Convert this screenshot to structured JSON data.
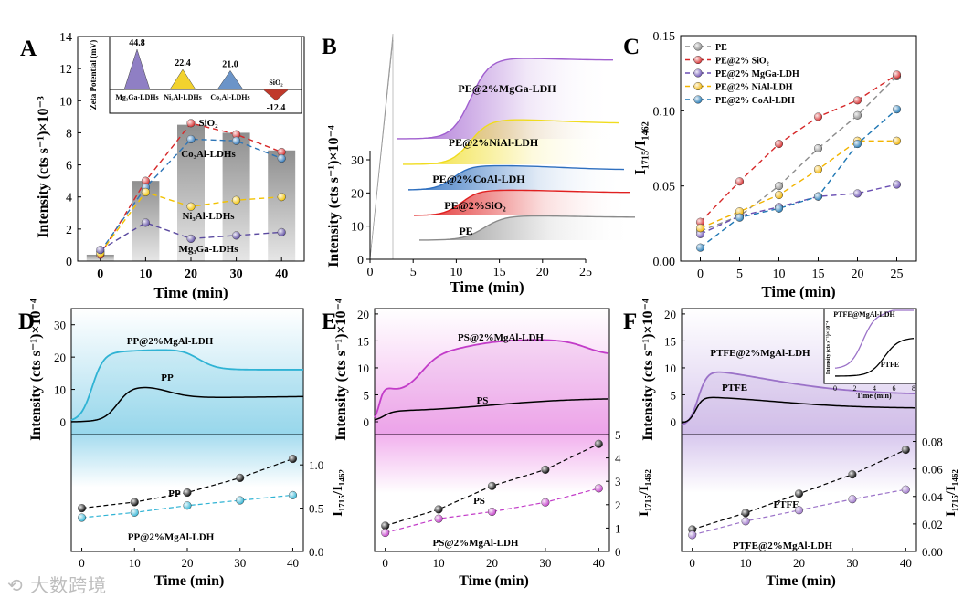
{
  "panel_letters": {
    "A": "A",
    "B": "B",
    "C": "C",
    "D": "D",
    "E": "E",
    "F": "F"
  },
  "watermark": "大数跨境",
  "chart_data": [
    {
      "id": "A",
      "type": "line",
      "xlabel": "Time (min)",
      "ylabel": "Intensity (cts s⁻¹)×10⁻³",
      "xlim": [
        -5,
        45
      ],
      "ylim": [
        0,
        14
      ],
      "xticks": [
        0,
        10,
        20,
        30,
        40
      ],
      "yticks": [
        0,
        2,
        4,
        6,
        8,
        10,
        12,
        14
      ],
      "x": [
        0,
        10,
        20,
        30,
        40
      ],
      "bars": [
        0.4,
        5.0,
        8.5,
        8.0,
        6.9
      ],
      "series": [
        {
          "name": "SiO₂",
          "color": "#d62728",
          "values": [
            0.4,
            5.0,
            8.6,
            7.9,
            6.8
          ]
        },
        {
          "name": "Co₃Al-LDHs",
          "color": "#2e75b6",
          "values": [
            0.6,
            4.6,
            7.6,
            7.5,
            6.4
          ]
        },
        {
          "name": "Ni₃Al-LDHs",
          "color": "#f2c200",
          "values": [
            0.5,
            4.3,
            3.4,
            3.8,
            4.0
          ]
        },
        {
          "name": "Mg₃Ga-LDHs",
          "color": "#5b4aa0",
          "values": [
            0.7,
            2.4,
            1.4,
            1.6,
            1.8
          ]
        }
      ],
      "inset": {
        "ylabel": "Zeta Potential (mV)",
        "items": [
          {
            "label": "Mg₃Ga-LDHs",
            "value": 44.8,
            "value_text": "44.8",
            "color": "#8f7fc4"
          },
          {
            "label": "Ni₃Al-LDHs",
            "value": 22.4,
            "value_text": "22.4",
            "color": "#f2d22e"
          },
          {
            "label": "Co₃Al-LDHs",
            "value": 21.0,
            "value_text": "21.0",
            "color": "#6b94c8"
          },
          {
            "label": "SiO₂",
            "value": -12.4,
            "value_text": "-12.4",
            "color": "#c0392b"
          }
        ]
      }
    },
    {
      "id": "B",
      "type": "area",
      "xlabel": "Time (min)",
      "ylabel": "Intensity (cts s⁻¹)×10⁻⁴",
      "xlim": [
        0,
        25
      ],
      "ylim": [
        0,
        30
      ],
      "xticks": [
        0,
        5,
        10,
        15,
        20,
        25
      ],
      "yticks": [
        0,
        10,
        20,
        30
      ],
      "series": [
        {
          "name": "PE",
          "color": "#8a8a8a"
        },
        {
          "name": "PE@2%SiO₂",
          "color": "#e02020"
        },
        {
          "name": "PE@2%CoAl-LDH",
          "color": "#2e6fbf"
        },
        {
          "name": "PE@2%NiAl-LDH",
          "color": "#f0dc1e"
        },
        {
          "name": "PE@2%MgGa-LDH",
          "color": "#a05fcf"
        }
      ]
    },
    {
      "id": "C",
      "type": "line",
      "xlabel": "Time (min)",
      "ylabel": "I₁₇₁₅/I₁₄₆₂",
      "xlim": [
        -2.5,
        27.5
      ],
      "ylim": [
        0,
        0.15
      ],
      "xticks": [
        0,
        5,
        10,
        15,
        20,
        25
      ],
      "yticks": [
        0.0,
        0.05,
        0.1,
        0.15
      ],
      "ytick_labels": [
        "0.00",
        "0.05",
        "0.10",
        "0.15"
      ],
      "x": [
        0,
        5,
        10,
        15,
        20,
        25
      ],
      "series": [
        {
          "name": "PE",
          "color": "#8c8c8c",
          "values": [
            0.02,
            0.03,
            0.05,
            0.075,
            0.097,
            0.123
          ]
        },
        {
          "name": "PE@2% SiO₂",
          "color": "#d62728",
          "values": [
            0.026,
            0.053,
            0.078,
            0.096,
            0.107,
            0.124
          ]
        },
        {
          "name": "PE@2% MgGa-LDH",
          "color": "#6a4fb3",
          "values": [
            0.018,
            0.03,
            0.036,
            0.043,
            0.045,
            0.051
          ]
        },
        {
          "name": "PE@2% NiAl-LDH",
          "color": "#f2b400",
          "values": [
            0.022,
            0.033,
            0.044,
            0.061,
            0.08,
            0.08
          ]
        },
        {
          "name": "PE@2% CoAl-LDH",
          "color": "#1f77b4",
          "values": [
            0.009,
            0.029,
            0.035,
            0.043,
            0.078,
            0.101
          ]
        }
      ]
    },
    {
      "id": "D",
      "type": "line",
      "top": {
        "ylabel": "Intensity (cts s⁻¹)×10⁻⁴",
        "ylim": [
          0,
          35
        ],
        "yticks": [
          0,
          10,
          20,
          30
        ],
        "series": [
          {
            "name": "PP@2%MgAl-LDH",
            "color": "#2fb3d4"
          },
          {
            "name": "PP",
            "color": "#000000"
          }
        ]
      },
      "bottom": {
        "xlabel": "Time (min)",
        "ylabel": "I₁₇₁₅/I₁₄₆₂",
        "xlim": [
          -2,
          42
        ],
        "ylim": [
          0,
          1.35
        ],
        "xticks": [
          0,
          10,
          20,
          30,
          40
        ],
        "yticks": [
          0.0,
          0.5,
          1.0
        ],
        "ytick_labels": [
          "0.0",
          "0.5",
          "1.0"
        ],
        "x": [
          0,
          10,
          20,
          30,
          40
        ],
        "series": [
          {
            "name": "PP",
            "color": "#000000",
            "values": [
              0.5,
              0.57,
              0.68,
              0.85,
              1.07
            ]
          },
          {
            "name": "PP@2%MgAl-LDH",
            "color": "#2fb3d4",
            "values": [
              0.39,
              0.45,
              0.53,
              0.59,
              0.65
            ]
          }
        ]
      }
    },
    {
      "id": "E",
      "type": "line",
      "top": {
        "ylabel": "Intensity (cts s⁻¹)×10⁻⁴",
        "ylim": [
          0,
          21
        ],
        "yticks": [
          0,
          5,
          10,
          15,
          20
        ],
        "series": [
          {
            "name": "PS@2%MgAl-LDH",
            "color": "#c23cc8"
          },
          {
            "name": "PS",
            "color": "#000000"
          }
        ]
      },
      "bottom": {
        "xlabel": "Time (min)",
        "ylabel": "I₁₇₁₅/I₁₄₆₂",
        "xlim": [
          -2,
          42
        ],
        "ylim": [
          0,
          5
        ],
        "xticks": [
          0,
          10,
          20,
          30,
          40
        ],
        "yticks": [
          0,
          1,
          2,
          3,
          4,
          5
        ],
        "x": [
          0,
          10,
          20,
          30,
          40
        ],
        "series": [
          {
            "name": "PS",
            "color": "#000000",
            "values": [
              1.1,
              1.8,
              2.8,
              3.5,
              4.6
            ]
          },
          {
            "name": "PS@2%MgAl-LDH",
            "color": "#c23cc8",
            "values": [
              0.8,
              1.4,
              1.7,
              2.1,
              2.7
            ]
          }
        ]
      }
    },
    {
      "id": "F",
      "type": "line",
      "top": {
        "ylabel": "Intensity (cts s⁻¹)×10⁻⁴",
        "ylim": [
          0,
          21
        ],
        "yticks": [
          0,
          5,
          10,
          15,
          20
        ],
        "series": [
          {
            "name": "PTFE@2%MgAl-LDH",
            "color": "#9b72c8"
          },
          {
            "name": "PTFE",
            "color": "#000000"
          }
        ],
        "inset": {
          "ylabel": "Intensity (cts s⁻¹)×10⁻⁴",
          "xlabel": "Time (min)",
          "xticks": [
            0,
            2,
            4,
            6,
            8
          ],
          "series": [
            {
              "name": "PTFE@MgAl-LDH",
              "color": "#9b72c8"
            },
            {
              "name": "PTFE",
              "color": "#000000"
            }
          ]
        }
      },
      "bottom": {
        "xlabel": "Time (min)",
        "ylabel": "I₁₇₁₅/I₁₄₆₂",
        "xlim": [
          -2,
          42
        ],
        "ylim": [
          0,
          0.085
        ],
        "xticks": [
          0,
          10,
          20,
          30,
          40
        ],
        "yticks": [
          0.0,
          0.02,
          0.04,
          0.06,
          0.08
        ],
        "ytick_labels": [
          "0.00",
          "0.02",
          "0.04",
          "0.06",
          "0.08"
        ],
        "x": [
          0,
          10,
          20,
          30,
          40
        ],
        "series": [
          {
            "name": "PTFE",
            "color": "#000000",
            "values": [
              0.016,
              0.028,
              0.042,
              0.056,
              0.074
            ]
          },
          {
            "name": "PTFE@2%MgAl-LDH",
            "color": "#9b72c8",
            "values": [
              0.012,
              0.022,
              0.03,
              0.038,
              0.045
            ]
          }
        ]
      }
    }
  ]
}
